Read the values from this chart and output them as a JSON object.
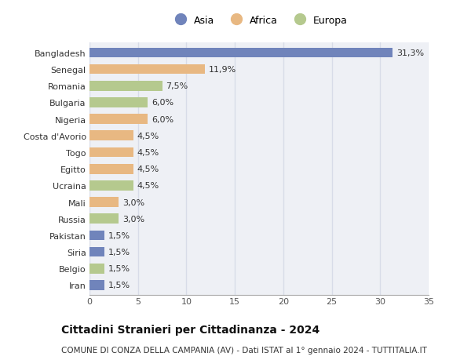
{
  "categories": [
    "Bangladesh",
    "Senegal",
    "Romania",
    "Bulgaria",
    "Nigeria",
    "Costa d'Avorio",
    "Togo",
    "Egitto",
    "Ucraina",
    "Mali",
    "Russia",
    "Pakistan",
    "Siria",
    "Belgio",
    "Iran"
  ],
  "values": [
    31.3,
    11.9,
    7.5,
    6.0,
    6.0,
    4.5,
    4.5,
    4.5,
    4.5,
    3.0,
    3.0,
    1.5,
    1.5,
    1.5,
    1.5
  ],
  "labels": [
    "31,3%",
    "11,9%",
    "7,5%",
    "6,0%",
    "6,0%",
    "4,5%",
    "4,5%",
    "4,5%",
    "4,5%",
    "3,0%",
    "3,0%",
    "1,5%",
    "1,5%",
    "1,5%",
    "1,5%"
  ],
  "continents": [
    "Asia",
    "Africa",
    "Europa",
    "Europa",
    "Africa",
    "Africa",
    "Africa",
    "Africa",
    "Europa",
    "Africa",
    "Europa",
    "Asia",
    "Asia",
    "Europa",
    "Asia"
  ],
  "colors": {
    "Asia": "#7084bb",
    "Africa": "#e8b882",
    "Europa": "#b5c98e"
  },
  "title": "Cittadini Stranieri per Cittadinanza - 2024",
  "subtitle": "COMUNE DI CONZA DELLA CAMPANIA (AV) - Dati ISTAT al 1° gennaio 2024 - TUTTITALIA.IT",
  "xlim": [
    0,
    35
  ],
  "xticks": [
    0,
    5,
    10,
    15,
    20,
    25,
    30,
    35
  ],
  "grid_color": "#d8dce8",
  "plot_bg_color": "#eef0f5",
  "bg_color": "#ffffff",
  "bar_height": 0.6,
  "label_fontsize": 8.0,
  "ytick_fontsize": 8.0,
  "xtick_fontsize": 8.0,
  "title_fontsize": 10,
  "subtitle_fontsize": 7.5,
  "legend_fontsize": 9
}
